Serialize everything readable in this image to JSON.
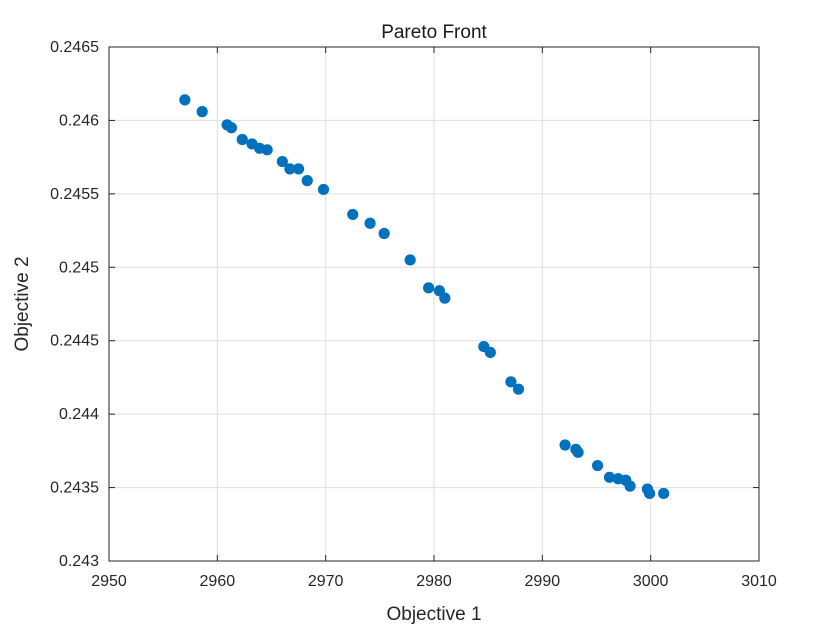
{
  "chart_data": {
    "type": "scatter",
    "title": "Pareto Front",
    "xlabel": "Objective 1",
    "ylabel": "Objective 2",
    "xlim": [
      2950,
      3010
    ],
    "ylim": [
      0.243,
      0.2465
    ],
    "x_ticks": [
      "2950",
      "2960",
      "2970",
      "2980",
      "2990",
      "3000",
      "3010"
    ],
    "y_ticks": [
      "0.243",
      "0.2435",
      "0.244",
      "0.2445",
      "0.245",
      "0.2455",
      "0.246",
      "0.2465"
    ],
    "grid": true,
    "legend": false,
    "marker_color": "#0072BD",
    "series": [
      {
        "points": [
          {
            "x": 2957.0,
            "y": 0.24614
          },
          {
            "x": 2958.6,
            "y": 0.24606
          },
          {
            "x": 2960.9,
            "y": 0.24597
          },
          {
            "x": 2961.3,
            "y": 0.24595
          },
          {
            "x": 2962.3,
            "y": 0.24587
          },
          {
            "x": 2963.2,
            "y": 0.24584
          },
          {
            "x": 2963.9,
            "y": 0.24581
          },
          {
            "x": 2964.6,
            "y": 0.2458
          },
          {
            "x": 2966.0,
            "y": 0.24572
          },
          {
            "x": 2966.7,
            "y": 0.24567
          },
          {
            "x": 2967.5,
            "y": 0.24567
          },
          {
            "x": 2968.3,
            "y": 0.24559
          },
          {
            "x": 2969.8,
            "y": 0.24553
          },
          {
            "x": 2972.5,
            "y": 0.24536
          },
          {
            "x": 2974.1,
            "y": 0.2453
          },
          {
            "x": 2975.4,
            "y": 0.24523
          },
          {
            "x": 2977.8,
            "y": 0.24505
          },
          {
            "x": 2979.5,
            "y": 0.24486
          },
          {
            "x": 2980.5,
            "y": 0.24484
          },
          {
            "x": 2981.0,
            "y": 0.24479
          },
          {
            "x": 2984.6,
            "y": 0.24446
          },
          {
            "x": 2985.2,
            "y": 0.24442
          },
          {
            "x": 2987.1,
            "y": 0.24422
          },
          {
            "x": 2987.8,
            "y": 0.24417
          },
          {
            "x": 2992.1,
            "y": 0.24379
          },
          {
            "x": 2993.1,
            "y": 0.24376
          },
          {
            "x": 2993.3,
            "y": 0.24374
          },
          {
            "x": 2995.1,
            "y": 0.24365
          },
          {
            "x": 2996.2,
            "y": 0.24357
          },
          {
            "x": 2997.0,
            "y": 0.24356
          },
          {
            "x": 2997.7,
            "y": 0.24355
          },
          {
            "x": 2998.1,
            "y": 0.24351
          },
          {
            "x": 2999.7,
            "y": 0.24349
          },
          {
            "x": 2999.9,
            "y": 0.24346
          },
          {
            "x": 3001.2,
            "y": 0.24346
          }
        ]
      }
    ]
  }
}
